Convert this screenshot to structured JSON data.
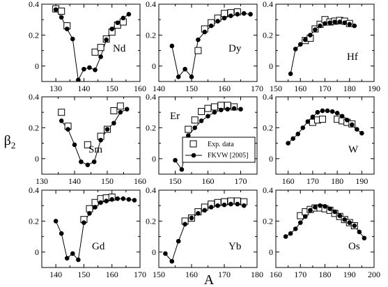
{
  "chart_data": {
    "type": "scatter",
    "xlabel": "A",
    "ylabel": "β",
    "ylabel_sub": "2",
    "legend": {
      "placement": "Er panel, lower-right",
      "entries": [
        {
          "label": "Exp. data",
          "marker": "open-square"
        },
        {
          "label": "FKVW [2005]",
          "marker": "filled-circle-line"
        }
      ]
    },
    "panels": [
      {
        "element": "Nd",
        "row": 0,
        "col": 0,
        "xlim": [
          125,
          160
        ],
        "xticks": [
          "130",
          "140",
          "150",
          "160"
        ],
        "ylim": [
          -0.1,
          0.4
        ],
        "yticks": [
          "0",
          "0.2",
          "0.4"
        ],
        "exp": {
          "x": [
            130,
            132,
            134,
            144,
            146,
            148,
            150,
            152,
            154
          ],
          "y": [
            0.37,
            0.355,
            0.26,
            0.09,
            0.12,
            0.175,
            0.22,
            0.265,
            0.285
          ]
        },
        "theory": {
          "x": [
            130,
            132,
            134,
            136,
            138,
            140,
            142,
            144,
            146,
            148,
            150,
            152,
            154,
            156
          ],
          "y": [
            0.365,
            0.315,
            0.24,
            0.175,
            -0.09,
            -0.02,
            -0.01,
            -0.025,
            0.06,
            0.17,
            0.24,
            0.28,
            0.31,
            0.335
          ]
        }
      },
      {
        "element": "Dy",
        "row": 0,
        "col": 1,
        "xlim": [
          140,
          170
        ],
        "xticks": [
          "140",
          "150",
          "160",
          "170"
        ],
        "ylim": [
          -0.1,
          0.4
        ],
        "yticks": [
          "0",
          "0.2",
          "0.4"
        ],
        "exp": {
          "x": [
            152,
            154,
            156,
            158,
            160,
            162,
            164
          ],
          "y": [
            0.1,
            0.24,
            0.28,
            0.31,
            0.34,
            0.345,
            0.35
          ]
        },
        "theory": {
          "x": [
            144,
            146,
            148,
            150,
            152,
            154,
            156,
            158,
            160,
            162,
            164,
            166,
            168
          ],
          "y": [
            0.13,
            -0.07,
            -0.02,
            -0.07,
            0.17,
            0.22,
            0.26,
            0.29,
            0.31,
            0.325,
            0.335,
            0.34,
            0.335
          ]
        }
      },
      {
        "element": "Hf",
        "row": 0,
        "col": 2,
        "xlim": [
          150,
          190
        ],
        "xticks": [
          "150",
          "160",
          "170",
          "180",
          "190"
        ],
        "ylim": [
          -0.1,
          0.4
        ],
        "yticks": [
          "0",
          "0.2",
          "0.4"
        ],
        "exp": {
          "x": [
            162,
            164,
            166,
            168,
            170,
            172,
            174,
            176,
            178,
            180
          ],
          "y": [
            0.165,
            0.18,
            0.24,
            0.27,
            0.3,
            0.285,
            0.29,
            0.295,
            0.29,
            0.275
          ]
        },
        "theory": {
          "x": [
            156,
            158,
            160,
            162,
            164,
            166,
            168,
            170,
            172,
            174,
            176,
            178,
            180,
            182
          ],
          "y": [
            -0.05,
            0.11,
            0.14,
            0.17,
            0.2,
            0.235,
            0.26,
            0.275,
            0.28,
            0.285,
            0.285,
            0.28,
            0.27,
            0.26
          ]
        }
      },
      {
        "element": "Sm",
        "row": 1,
        "col": 0,
        "xlim": [
          130,
          160
        ],
        "xticks": [
          "130",
          "140",
          "150",
          "160"
        ],
        "ylim": [
          -0.1,
          0.4
        ],
        "yticks": [
          "0",
          "0.2",
          "0.4"
        ],
        "exp": {
          "x": [
            136,
            138,
            144,
            148,
            150,
            152,
            154
          ],
          "y": [
            0.3,
            0.21,
            0.09,
            0.145,
            0.19,
            0.31,
            0.34
          ]
        },
        "theory": {
          "x": [
            136,
            138,
            140,
            142,
            144,
            146,
            148,
            150,
            152,
            154,
            156
          ],
          "y": [
            0.245,
            0.19,
            0.09,
            -0.02,
            -0.04,
            -0.02,
            0.12,
            0.19,
            0.23,
            0.3,
            0.32
          ]
        }
      },
      {
        "element": "Er",
        "row": 1,
        "col": 1,
        "xlim": [
          145,
          175
        ],
        "xticks": [
          "150",
          "160",
          "170"
        ],
        "ylim": [
          -0.1,
          0.4
        ],
        "yticks": [
          "0",
          "0.2",
          "0.4"
        ],
        "exp": {
          "x": [
            154,
            156,
            158,
            160,
            162,
            164,
            166,
            168
          ],
          "y": [
            0.19,
            0.25,
            0.305,
            0.325,
            0.335,
            0.345,
            0.345,
            0.335
          ]
        },
        "theory": {
          "x": [
            150,
            152,
            154,
            156,
            158,
            160,
            162,
            164,
            166,
            168,
            170
          ],
          "y": [
            -0.01,
            -0.07,
            0.15,
            0.2,
            0.245,
            0.275,
            0.3,
            0.315,
            0.32,
            0.325,
            0.32
          ]
        }
      },
      {
        "element": "W",
        "row": 1,
        "col": 2,
        "xlim": [
          155,
          195
        ],
        "xticks": [
          "160",
          "170",
          "180",
          "190"
        ],
        "ylim": [
          -0.1,
          0.4
        ],
        "yticks": [
          "0",
          "0.2",
          "0.4"
        ],
        "exp": {
          "x": [
            170,
            172,
            174,
            180,
            182,
            184,
            186
          ],
          "y": [
            0.235,
            0.25,
            0.255,
            0.255,
            0.245,
            0.235,
            0.225
          ]
        },
        "theory": {
          "x": [
            160,
            162,
            164,
            166,
            168,
            170,
            172,
            174,
            176,
            178,
            180,
            182,
            184,
            186,
            188,
            190
          ],
          "y": [
            0.1,
            0.13,
            0.16,
            0.2,
            0.24,
            0.27,
            0.3,
            0.31,
            0.31,
            0.305,
            0.295,
            0.275,
            0.25,
            0.22,
            0.19,
            0.165
          ]
        }
      },
      {
        "element": "Gd",
        "row": 2,
        "col": 0,
        "xlim": [
          135,
          170
        ],
        "xticks": [
          "140",
          "150",
          "160",
          "170"
        ],
        "ylim": [
          -0.1,
          0.4
        ],
        "yticks": [
          "0",
          "0.2",
          "0.4"
        ],
        "exp": {
          "x": [
            150,
            152,
            154,
            156,
            158,
            160
          ],
          "y": [
            0.21,
            0.28,
            0.32,
            0.345,
            0.35,
            0.355
          ]
        },
        "theory": {
          "x": [
            140,
            142,
            144,
            146,
            148,
            150,
            152,
            154,
            156,
            158,
            160,
            162,
            164,
            166,
            168
          ],
          "y": [
            0.2,
            0.12,
            -0.04,
            -0.01,
            -0.05,
            0.19,
            0.25,
            0.29,
            0.32,
            0.33,
            0.34,
            0.345,
            0.345,
            0.34,
            0.335
          ]
        }
      },
      {
        "element": "Yb",
        "row": 2,
        "col": 1,
        "xlim": [
          150,
          180
        ],
        "xticks": [
          "150",
          "160",
          "170",
          "180"
        ],
        "ylim": [
          -0.1,
          0.4
        ],
        "yticks": [
          "0",
          "0.2",
          "0.4"
        ],
        "exp": {
          "x": [
            158,
            160,
            162,
            164,
            166,
            168,
            170,
            172,
            174,
            176
          ],
          "y": [
            0.2,
            0.22,
            0.26,
            0.29,
            0.31,
            0.32,
            0.325,
            0.33,
            0.33,
            0.325
          ]
        },
        "theory": {
          "x": [
            152,
            154,
            156,
            158,
            160,
            162,
            164,
            166,
            168,
            170,
            172,
            174,
            176
          ],
          "y": [
            -0.01,
            -0.06,
            0.07,
            0.18,
            0.22,
            0.25,
            0.27,
            0.29,
            0.3,
            0.305,
            0.31,
            0.31,
            0.3
          ]
        }
      },
      {
        "element": "Os",
        "row": 2,
        "col": 2,
        "xlim": [
          160,
          200
        ],
        "xticks": [
          "160",
          "170",
          "180",
          "190",
          "200"
        ],
        "ylim": [
          -0.1,
          0.4
        ],
        "yticks": [
          "0",
          "0.2",
          "0.4"
        ],
        "exp": {
          "x": [
            170,
            172,
            174,
            176,
            178,
            180,
            182,
            184,
            186,
            188,
            190,
            192
          ],
          "y": [
            0.235,
            0.26,
            0.275,
            0.285,
            0.285,
            0.28,
            0.27,
            0.25,
            0.23,
            0.21,
            0.19,
            0.17
          ]
        },
        "theory": {
          "x": [
            164,
            166,
            168,
            170,
            172,
            174,
            176,
            178,
            180,
            182,
            184,
            186,
            188,
            190,
            192,
            194,
            196
          ],
          "y": [
            0.1,
            0.12,
            0.15,
            0.19,
            0.23,
            0.27,
            0.29,
            0.3,
            0.295,
            0.28,
            0.26,
            0.235,
            0.21,
            0.19,
            0.17,
            0.13,
            0.09
          ]
        }
      }
    ]
  }
}
